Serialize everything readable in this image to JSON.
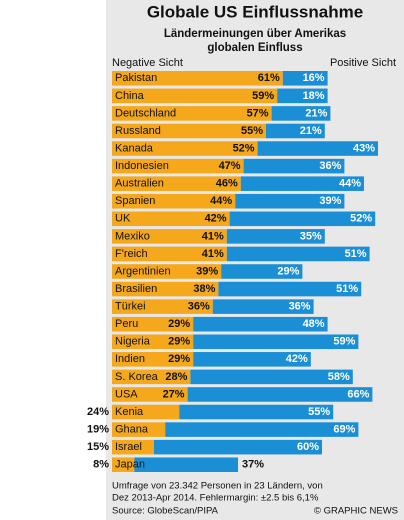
{
  "chart_data": {
    "type": "stacked-bar-h",
    "title": "Globale US Einflussnahme",
    "subtitle": [
      "Ländermeinungen über Amerikas",
      "globalen Einfluss"
    ],
    "categories": [
      "Pakistan",
      "China",
      "Deutschland",
      "Russland",
      "Kanada",
      "Indonesien",
      "Australien",
      "Spanien",
      "UK",
      "Mexiko",
      "F'reich",
      "Argentinien",
      "Brasilien",
      "Türkei",
      "Peru",
      "Nigeria",
      "Indien",
      "S. Korea",
      "USA",
      "Kenia",
      "Ghana",
      "Israel",
      "Japan"
    ],
    "series": [
      {
        "name": "Negative Sicht",
        "color": "#f5a81c",
        "values": [
          61,
          59,
          57,
          55,
          52,
          47,
          46,
          44,
          42,
          41,
          41,
          39,
          38,
          36,
          29,
          29,
          29,
          28,
          27,
          24,
          19,
          15,
          8
        ],
        "value_labels": [
          "61%",
          "59%",
          "57%",
          "55%",
          "52%",
          "47%",
          "46%",
          "44%",
          "42%",
          "41%",
          "41%",
          "39%",
          "38%",
          "36%",
          "29%",
          "29%",
          "29%",
          "28%",
          "27%",
          "24%",
          "19%",
          "15%",
          "8%"
        ]
      },
      {
        "name": "Positive Sicht",
        "color": "#1b8fd6",
        "values": [
          16,
          18,
          21,
          21,
          43,
          36,
          44,
          39,
          52,
          35,
          51,
          29,
          51,
          36,
          48,
          59,
          42,
          58,
          66,
          55,
          69,
          60,
          37
        ],
        "value_labels": [
          "16%",
          "18%",
          "21%",
          "21%",
          "43%",
          "36%",
          "44%",
          "39%",
          "52%",
          "35%",
          "51%",
          "29%",
          "51%",
          "36%",
          "48%",
          "59%",
          "42%",
          "58%",
          "66%",
          "55%",
          "69%",
          "60%",
          "37%"
        ]
      }
    ],
    "xlim": [
      0,
      100
    ],
    "footnote": [
      "Umfrage von 23.342 Personen in 23 Ländern, von",
      "Dez 2013-Apr 2014. Fehlermargin: ±2.5 bis 6,1%"
    ],
    "source": "Source: GlobeScan/PIPA",
    "credit": "© GRAPHIC NEWS"
  }
}
